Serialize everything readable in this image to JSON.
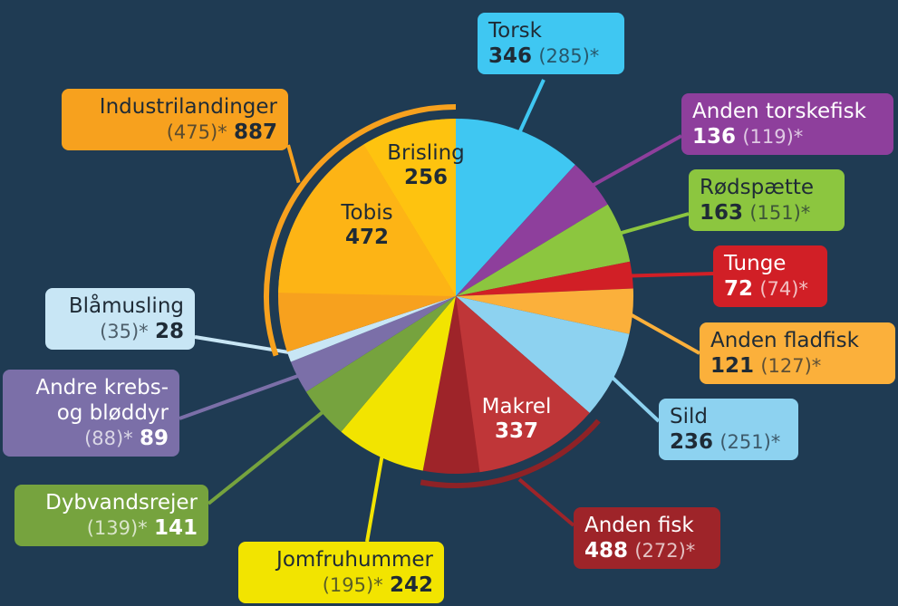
{
  "chart_data": {
    "type": "pie",
    "slices": [
      {
        "name": "Torsk",
        "value": 346,
        "previous_label": "(285)*",
        "color": "#3fc7f2"
      },
      {
        "name": "Anden torskefisk",
        "value": 136,
        "previous_label": "(119)*",
        "color": "#8e3f9c"
      },
      {
        "name": "Rødspætte",
        "value": 163,
        "previous_label": "(151)*",
        "color": "#8cc63f"
      },
      {
        "name": "Tunge",
        "value": 72,
        "previous_label": "(74)*",
        "color": "#d11f26"
      },
      {
        "name": "Anden fladfisk",
        "value": 121,
        "previous_label": "(127)*",
        "color": "#fbb03b"
      },
      {
        "name": "Sild",
        "value": 236,
        "previous_label": "(251)*",
        "color": "#8dd2f0"
      },
      {
        "name": "Anden fisk",
        "value": 488,
        "previous_label": "(272)*",
        "color": "#9e2429",
        "parts": [
          {
            "name": "Makrel",
            "value": 337,
            "color": "#bf3638"
          }
        ]
      },
      {
        "name": "Jomfruhummer",
        "value": 242,
        "previous_label": "(195)*",
        "color": "#f2e400"
      },
      {
        "name": "Dybvandsrejer",
        "value": 141,
        "previous_label": "(139)*",
        "color": "#76a33e"
      },
      {
        "name": "Andre krebs-\nog bløddyr",
        "value": 89,
        "previous_label": "(88)*",
        "color": "#7b6fa8"
      },
      {
        "name": "Blåmusling",
        "value": 28,
        "previous_label": "(35)*",
        "color": "#c8e6f5"
      },
      {
        "name": "Industrilandinger",
        "value": 887,
        "previous_label": "(475)*",
        "color": "#f7a11e",
        "parts": [
          {
            "name": "Tobis",
            "value": 472,
            "color": "#fdb415"
          },
          {
            "name": "Brisling",
            "value": 256,
            "color": "#fec30f"
          }
        ]
      }
    ]
  }
}
